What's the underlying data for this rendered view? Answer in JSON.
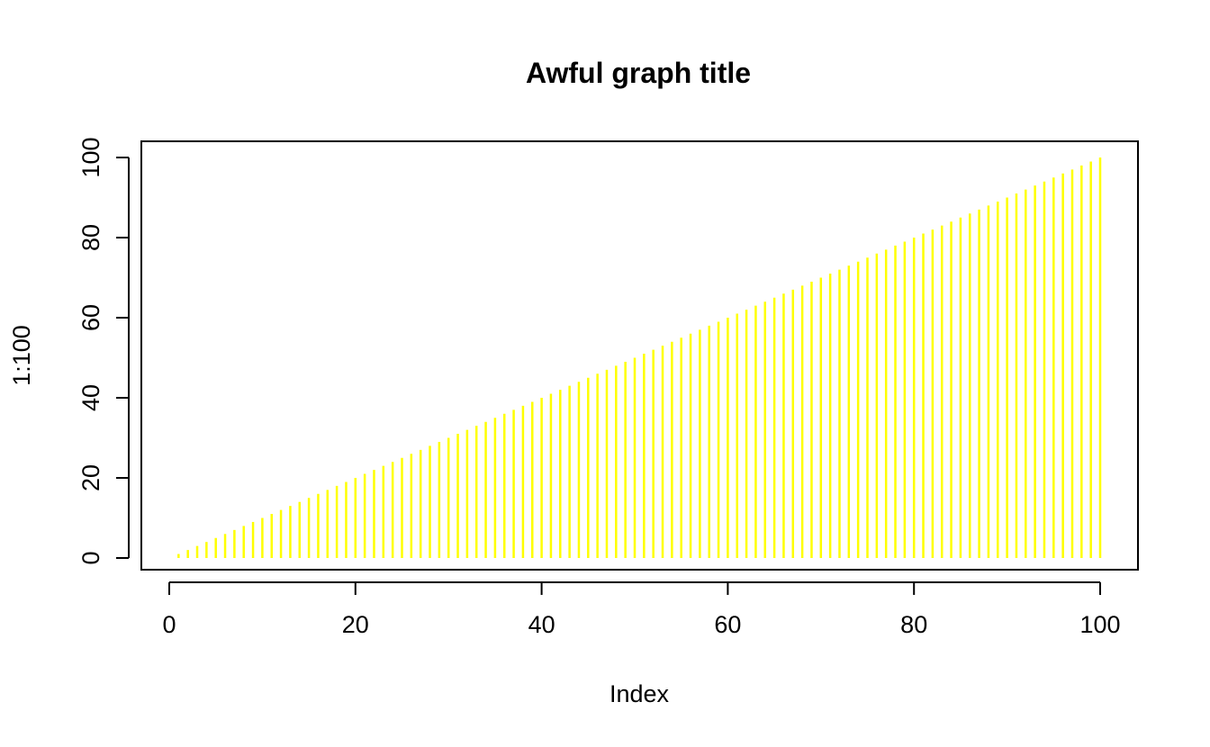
{
  "chart_data": {
    "type": "bar",
    "title": "Awful graph title",
    "xlabel": "Index",
    "ylabel": "1:100",
    "x": [
      1,
      2,
      3,
      4,
      5,
      6,
      7,
      8,
      9,
      10,
      11,
      12,
      13,
      14,
      15,
      16,
      17,
      18,
      19,
      20,
      21,
      22,
      23,
      24,
      25,
      26,
      27,
      28,
      29,
      30,
      31,
      32,
      33,
      34,
      35,
      36,
      37,
      38,
      39,
      40,
      41,
      42,
      43,
      44,
      45,
      46,
      47,
      48,
      49,
      50,
      51,
      52,
      53,
      54,
      55,
      56,
      57,
      58,
      59,
      60,
      61,
      62,
      63,
      64,
      65,
      66,
      67,
      68,
      69,
      70,
      71,
      72,
      73,
      74,
      75,
      76,
      77,
      78,
      79,
      80,
      81,
      82,
      83,
      84,
      85,
      86,
      87,
      88,
      89,
      90,
      91,
      92,
      93,
      94,
      95,
      96,
      97,
      98,
      99,
      100
    ],
    "values": [
      1,
      2,
      3,
      4,
      5,
      6,
      7,
      8,
      9,
      10,
      11,
      12,
      13,
      14,
      15,
      16,
      17,
      18,
      19,
      20,
      21,
      22,
      23,
      24,
      25,
      26,
      27,
      28,
      29,
      30,
      31,
      32,
      33,
      34,
      35,
      36,
      37,
      38,
      39,
      40,
      41,
      42,
      43,
      44,
      45,
      46,
      47,
      48,
      49,
      50,
      51,
      52,
      53,
      54,
      55,
      56,
      57,
      58,
      59,
      60,
      61,
      62,
      63,
      64,
      65,
      66,
      67,
      68,
      69,
      70,
      71,
      72,
      73,
      74,
      75,
      76,
      77,
      78,
      79,
      80,
      81,
      82,
      83,
      84,
      85,
      86,
      87,
      88,
      89,
      90,
      91,
      92,
      93,
      94,
      95,
      96,
      97,
      98,
      99,
      100
    ],
    "xlim": [
      1,
      100
    ],
    "ylim": [
      0,
      100
    ],
    "x_ticks": [
      0,
      20,
      40,
      60,
      80,
      100
    ],
    "x_tick_labels": [
      "0",
      "20",
      "40",
      "60",
      "80",
      "100"
    ],
    "y_ticks": [
      0,
      20,
      40,
      60,
      80,
      100
    ],
    "y_tick_labels": [
      "0",
      "20",
      "40",
      "60",
      "80",
      "100"
    ],
    "grid": false,
    "line_color": "#FFFF00",
    "axis_color": "#000000"
  }
}
